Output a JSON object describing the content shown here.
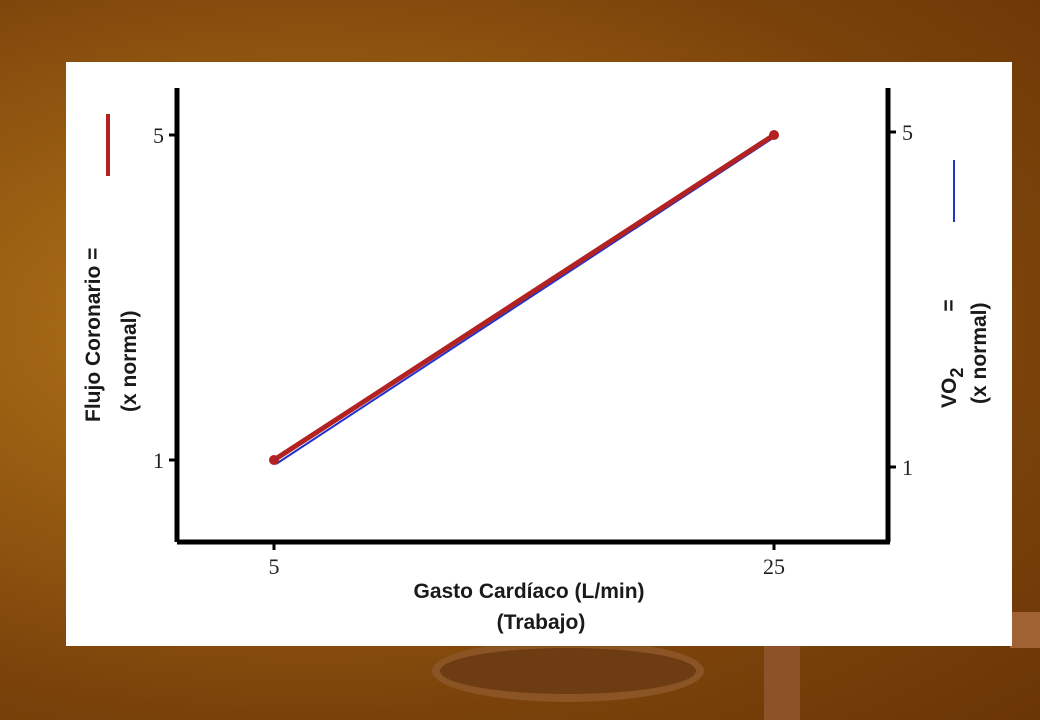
{
  "chart_data": {
    "type": "line",
    "x_values": [
      5,
      25
    ],
    "xlabel_line1": "Gasto Cardíaco (L/min)",
    "xlabel_line2": "(Trabajo)",
    "ylabel_left_line1": "Flujo Coronario =",
    "ylabel_left_line2": "(x normal)",
    "ylabel_right_main": "VO",
    "ylabel_right_sub": "2",
    "ylabel_right_eq": "=",
    "ylabel_right_line2": "(x normal)",
    "x_ticks": [
      "5",
      "25"
    ],
    "y_left_ticks": [
      "1",
      "5"
    ],
    "y_right_ticks": [
      "1",
      "5"
    ],
    "series": [
      {
        "values": [
          1,
          5
        ],
        "color": "#b22222"
      },
      {
        "values": [
          1,
          5
        ],
        "color": "#2233cc"
      }
    ]
  },
  "colors": {
    "background": "#8a5010",
    "panel": "#ffffff",
    "axis": "#000000"
  }
}
